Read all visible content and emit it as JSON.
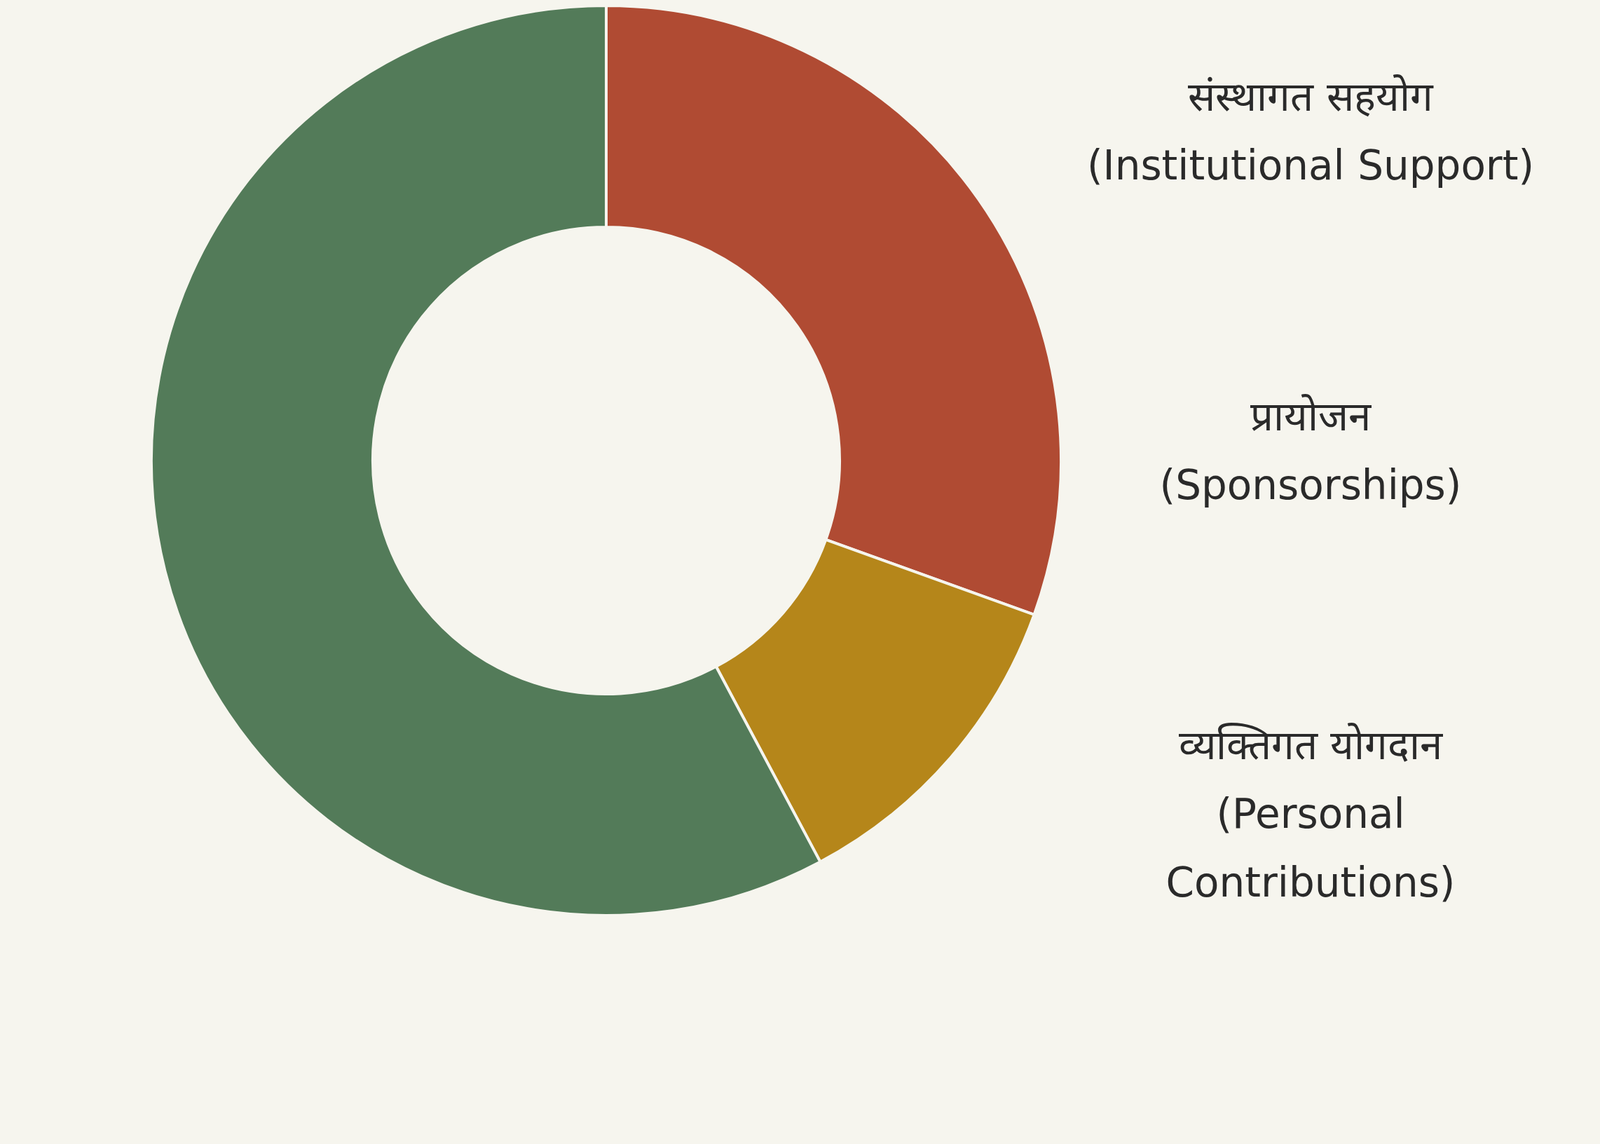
{
  "chart_data": {
    "type": "donut",
    "categories": [
      "संस्थागत सहयोग\n(Institutional Support)",
      "प्रायोजन\n(Sponsorships)",
      "व्यक्तिगत योगदान\n(Personal\nContributions)"
    ],
    "values": [
      30.5,
      11.7,
      57.8
    ],
    "colors": [
      "#b04b33",
      "#b5861a",
      "#537b59"
    ],
    "data_labels": false
  }
}
